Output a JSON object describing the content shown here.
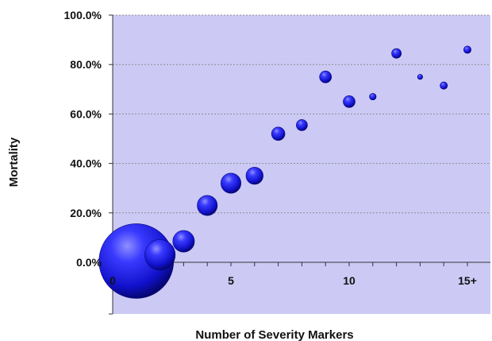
{
  "chart_data": {
    "type": "scatter",
    "subtype": "bubble",
    "title": "",
    "xlabel": "Number of Severity Markers",
    "ylabel": "Mortality",
    "xlim": [
      -1,
      16
    ],
    "ylim": [
      -20,
      100
    ],
    "x_ticks": [
      {
        "value": 0,
        "label": "0"
      },
      {
        "value": 5,
        "label": "5"
      },
      {
        "value": 10,
        "label": "10"
      },
      {
        "value": 15,
        "label": "15+"
      }
    ],
    "y_ticks": [
      {
        "value": 0,
        "label": "0.0%"
      },
      {
        "value": 20,
        "label": "20.0%"
      },
      {
        "value": 40,
        "label": "40.0%"
      },
      {
        "value": 60,
        "label": "60.0%"
      },
      {
        "value": 80,
        "label": "80.0%"
      },
      {
        "value": 100,
        "label": "100.0%"
      }
    ],
    "grid": true,
    "legend": "none",
    "plot_background": "#cccaf5",
    "bubble_color": "#1818e0",
    "points": [
      {
        "x": 1,
        "y": 0.5,
        "size": 1.0
      },
      {
        "x": 2,
        "y": 3.0,
        "size": 0.41
      },
      {
        "x": 3,
        "y": 8.5,
        "size": 0.29
      },
      {
        "x": 4,
        "y": 23.0,
        "size": 0.27
      },
      {
        "x": 5,
        "y": 32.0,
        "size": 0.27
      },
      {
        "x": 6,
        "y": 35.0,
        "size": 0.23
      },
      {
        "x": 7,
        "y": 52.0,
        "size": 0.18
      },
      {
        "x": 8,
        "y": 55.5,
        "size": 0.15
      },
      {
        "x": 9,
        "y": 75.0,
        "size": 0.16
      },
      {
        "x": 10,
        "y": 65.0,
        "size": 0.16
      },
      {
        "x": 11,
        "y": 67.0,
        "size": 0.09
      },
      {
        "x": 12,
        "y": 84.5,
        "size": 0.13
      },
      {
        "x": 13,
        "y": 75.0,
        "size": 0.07
      },
      {
        "x": 14,
        "y": 71.5,
        "size": 0.1
      },
      {
        "x": 15,
        "y": 86.0,
        "size": 0.1
      }
    ]
  }
}
